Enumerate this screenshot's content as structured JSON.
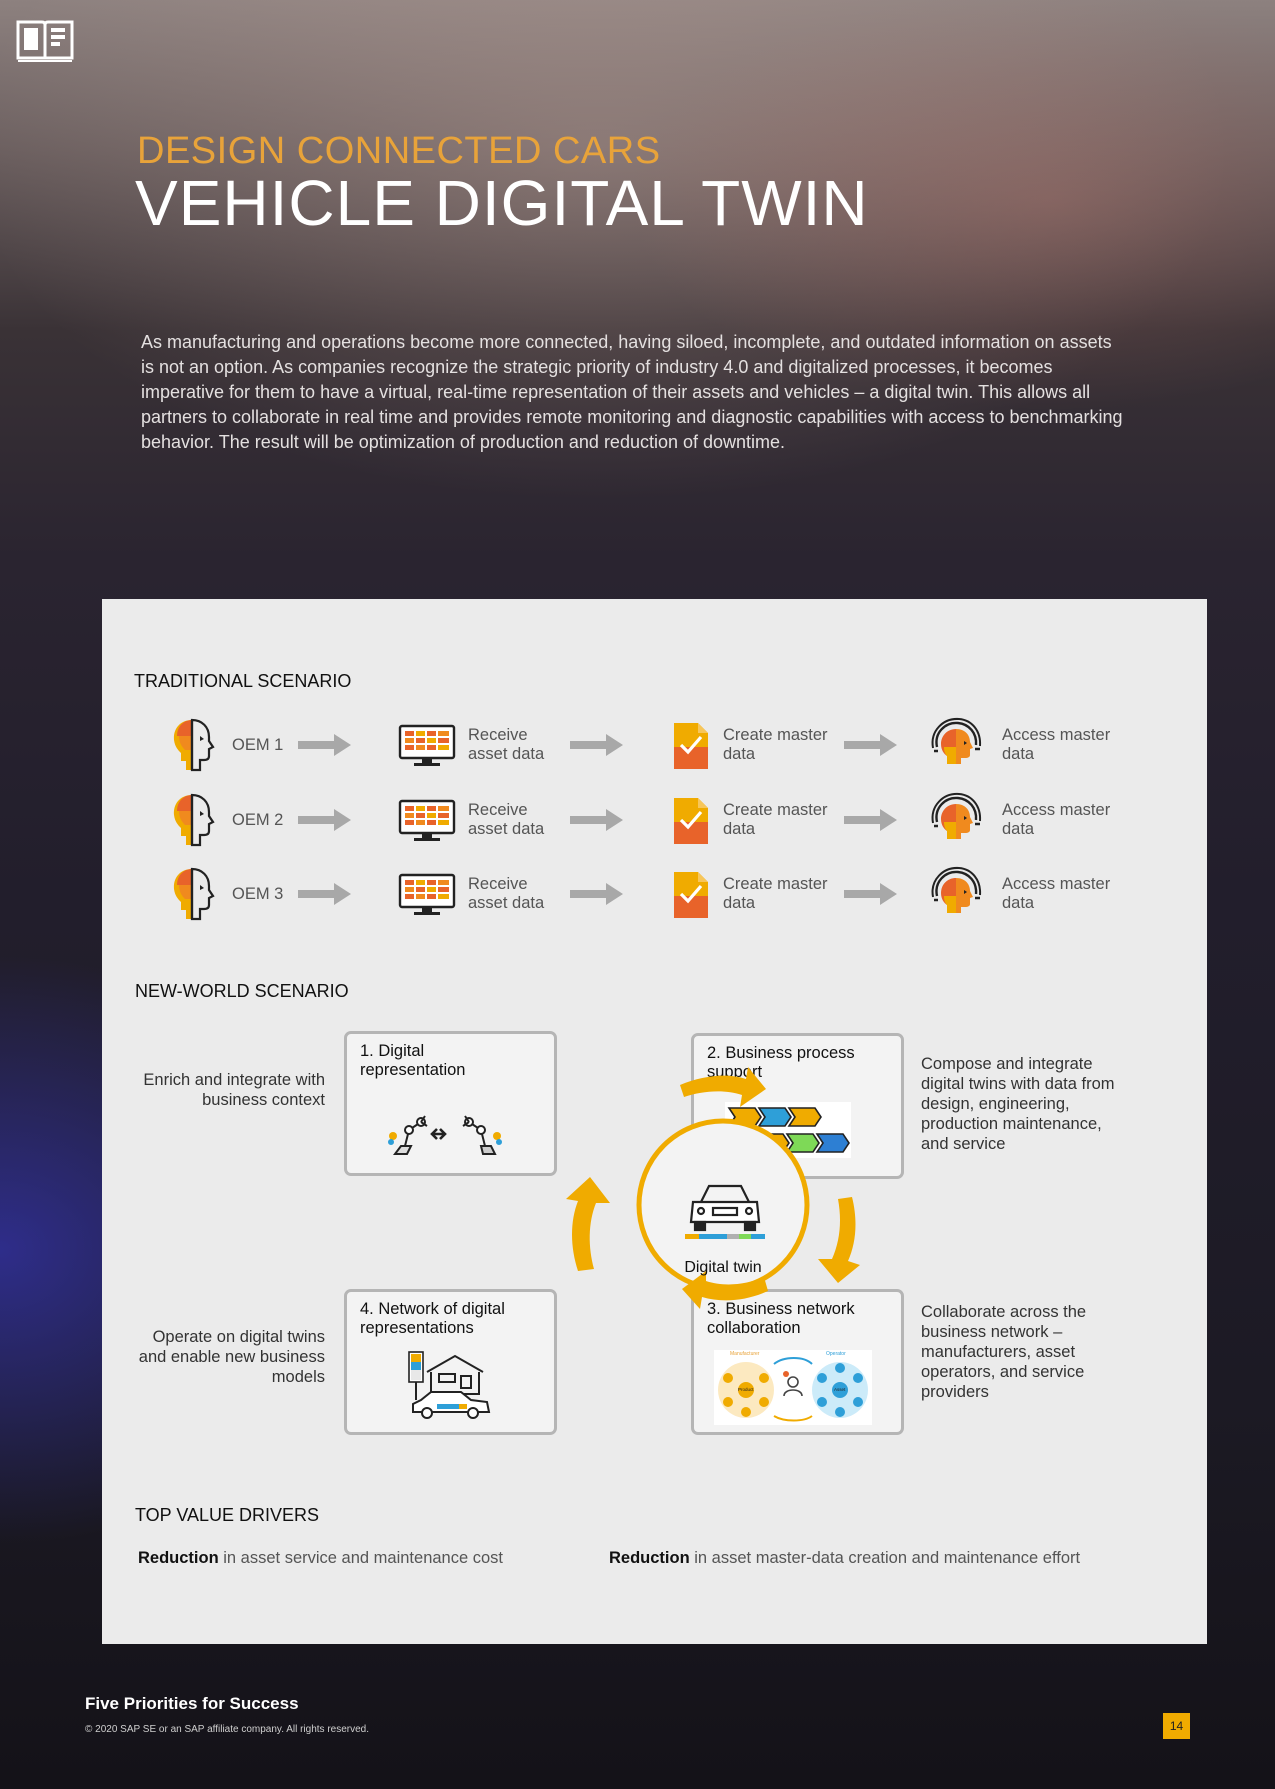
{
  "header": {
    "kicker": "DESIGN CONNECTED CARS",
    "title": "VEHICLE DIGITAL TWIN"
  },
  "intro": "As manufacturing and operations become more connected, having siloed, incomplete, and outdated information on assets is not an option. As companies recognize the strategic priority of industry 4.0 and digitalized processes, it becomes imperative for them to have a virtual, real-time representation of their assets and vehicles – a digital twin. This allows all partners to collaborate in real time and provides remote monitoring and diagnostic capabilities with access to benchmarking behavior. The result will be optimization of production and reduction of downtime.",
  "traditional": {
    "heading": "TRADITIONAL SCENARIO",
    "rows": [
      {
        "oem": "OEM 1",
        "step1": "Receive asset data",
        "step2": "Create master data",
        "step3": "Access master data"
      },
      {
        "oem": "OEM 2",
        "step1": "Receive asset data",
        "step2": "Create master data",
        "step3": "Access master data"
      },
      {
        "oem": "OEM 3",
        "step1": "Receive asset data",
        "step2": "Create master data",
        "step3": "Access master data"
      }
    ]
  },
  "new_world": {
    "heading": "NEW-WORLD SCENARIO",
    "center_label": "Digital twin",
    "boxes": [
      {
        "title": "1. Digital representation"
      },
      {
        "title": "2. Business process support"
      },
      {
        "title": "3. Business network collaboration"
      },
      {
        "title": "4. Network of digital representations"
      }
    ],
    "side_notes": {
      "enrich": "Enrich and integrate with business context",
      "compose": "Compose and integrate digital twins with data from design, engineering, production maintenance, and service",
      "operate": "Operate on digital twins and enable new business models",
      "collaborate": "Collaborate across the business network – manufacturers, asset operators, and service providers"
    },
    "mini_labels": {
      "manufacturer": "Manufacturer",
      "operator": "Operator",
      "product": "Product",
      "asset": "Asset"
    }
  },
  "drivers": {
    "heading": "TOP VALUE DRIVERS",
    "items": [
      {
        "bold": "Reduction",
        "rest": " in asset service and maintenance cost"
      },
      {
        "bold": "Reduction",
        "rest": " in asset master-data creation and maintenance effort"
      }
    ]
  },
  "footer": {
    "title": "Five Priorities for Success",
    "copyright": "© 2020 SAP SE or an SAP affiliate company. All rights reserved.",
    "page": "14"
  },
  "colors": {
    "accent": "#f0ab00",
    "orange": "#e8632a",
    "panel": "#ebebeb"
  }
}
